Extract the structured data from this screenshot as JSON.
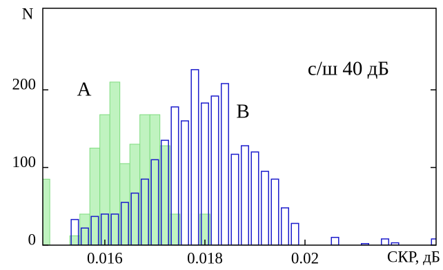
{
  "chart_data": {
    "type": "histogram",
    "ylabel": "N",
    "xlabel": "СКР, дБ",
    "annotations": [
      {
        "text": "A"
      },
      {
        "text": "B"
      },
      {
        "text": "с/ш 40 дБ"
      }
    ],
    "xlim": [
      0.01476,
      0.02262
    ],
    "xticks": [
      0.016,
      0.018,
      0.02
    ],
    "ylim": [
      0,
      305
    ],
    "yticks": [
      0,
      100,
      200
    ],
    "series": [
      {
        "name": "A",
        "color": "#7fdc7f",
        "fill": "#b9f2b9",
        "filled": true,
        "bins": [
          0.0147,
          0.0149,
          0.0151,
          0.0153,
          0.0155,
          0.0157,
          0.0159,
          0.0161,
          0.0163,
          0.0165,
          0.0167,
          0.0169,
          0.0171,
          0.0173,
          0.0175,
          0.0177,
          0.0179,
          0.0181
        ],
        "values": [
          85,
          0,
          0,
          12,
          40,
          125,
          168,
          210,
          105,
          130,
          168,
          168,
          128,
          40,
          0,
          0,
          40
        ]
      },
      {
        "name": "B",
        "color": "#1c1ccc",
        "fill": "none",
        "filled": false,
        "bins": [
          0.0153,
          0.0155,
          0.0157,
          0.0159,
          0.0161,
          0.0163,
          0.0165,
          0.0167,
          0.0169,
          0.0171,
          0.0173,
          0.0175,
          0.0177,
          0.0179,
          0.0181,
          0.0183,
          0.0185,
          0.0187,
          0.0189,
          0.0191,
          0.0193,
          0.0195,
          0.0197,
          0.0199,
          0.0201,
          0.0203,
          0.0205,
          0.0207,
          0.0209,
          0.0211,
          0.0213,
          0.0215,
          0.0217,
          0.0219,
          0.0221,
          0.0223,
          0.0225,
          0.0227
        ],
        "values": [
          33,
          22,
          37,
          40,
          40,
          55,
          67,
          85,
          110,
          135,
          178,
          160,
          226,
          183,
          192,
          208,
          117,
          128,
          120,
          95,
          85,
          48,
          28,
          0,
          0,
          0,
          10,
          0,
          0,
          2,
          0,
          8,
          3,
          0,
          0,
          0,
          8
        ]
      }
    ]
  }
}
